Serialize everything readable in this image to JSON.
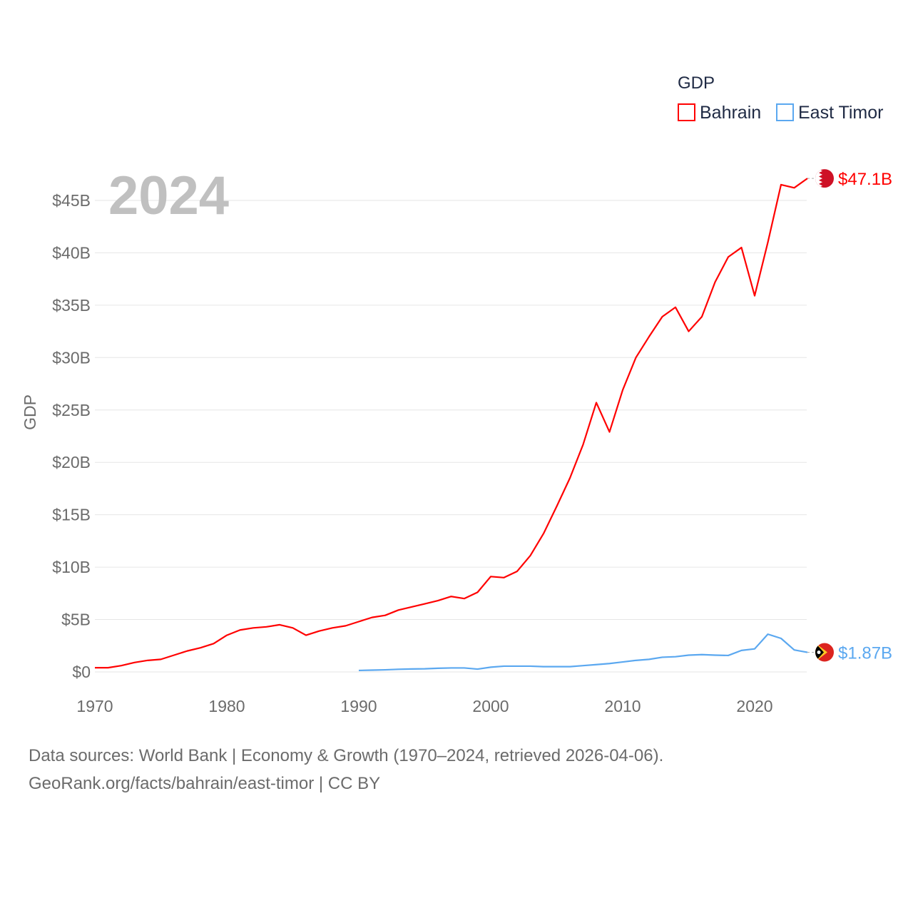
{
  "chart_data": {
    "type": "line",
    "title": "GDP",
    "year_label": "2024",
    "ylabel": "GDP",
    "xlabel": "",
    "xlim": [
      1970,
      2024
    ],
    "ylim": [
      0,
      48
    ],
    "x_ticks": [
      1970,
      1980,
      1990,
      2000,
      2010,
      2020
    ],
    "x_tick_labels": [
      "1970",
      "1980",
      "1990",
      "2000",
      "2010",
      "2020"
    ],
    "y_ticks": [
      0,
      5,
      10,
      15,
      20,
      25,
      30,
      35,
      40,
      45
    ],
    "y_tick_labels": [
      "$0",
      "$5B",
      "$10B",
      "$15B",
      "$20B",
      "$25B",
      "$30B",
      "$35B",
      "$40B",
      "$45B"
    ],
    "grid": true,
    "legend_position": "top-right",
    "series": [
      {
        "name": "Bahrain",
        "color": "#ff0000",
        "end_label": "$47.1B",
        "flag": "bahrain-flag",
        "start_year": 1970,
        "values": [
          0.4,
          0.4,
          0.6,
          0.9,
          1.1,
          1.2,
          1.6,
          2.0,
          2.3,
          2.7,
          3.5,
          4.0,
          4.2,
          4.3,
          4.5,
          4.2,
          3.5,
          3.9,
          4.2,
          4.4,
          4.8,
          5.2,
          5.4,
          5.9,
          6.2,
          6.5,
          6.8,
          7.2,
          7.0,
          7.6,
          9.1,
          9.0,
          9.6,
          11.1,
          13.2,
          15.8,
          18.5,
          21.7,
          25.7,
          22.9,
          26.9,
          30.0,
          32.0,
          33.9,
          34.8,
          32.5,
          33.9,
          37.2,
          39.6,
          40.5,
          35.9,
          41.0,
          46.5,
          46.2,
          47.1
        ]
      },
      {
        "name": "East Timor",
        "color": "#5ba8f0",
        "end_label": "$1.87B",
        "flag": "east-timor-flag",
        "start_year": 1990,
        "values": [
          0.14,
          0.17,
          0.2,
          0.25,
          0.28,
          0.3,
          0.35,
          0.38,
          0.38,
          0.27,
          0.45,
          0.55,
          0.55,
          0.55,
          0.5,
          0.5,
          0.5,
          0.6,
          0.7,
          0.8,
          0.95,
          1.1,
          1.2,
          1.4,
          1.45,
          1.6,
          1.65,
          1.6,
          1.57,
          2.05,
          2.2,
          3.6,
          3.2,
          2.1,
          1.87
        ]
      }
    ]
  },
  "footer": {
    "line1": "Data sources: World Bank | Economy & Growth (1970–2024, retrieved 2026-04-06).",
    "line2": "GeoRank.org/facts/bahrain/east-timor | CC BY"
  }
}
